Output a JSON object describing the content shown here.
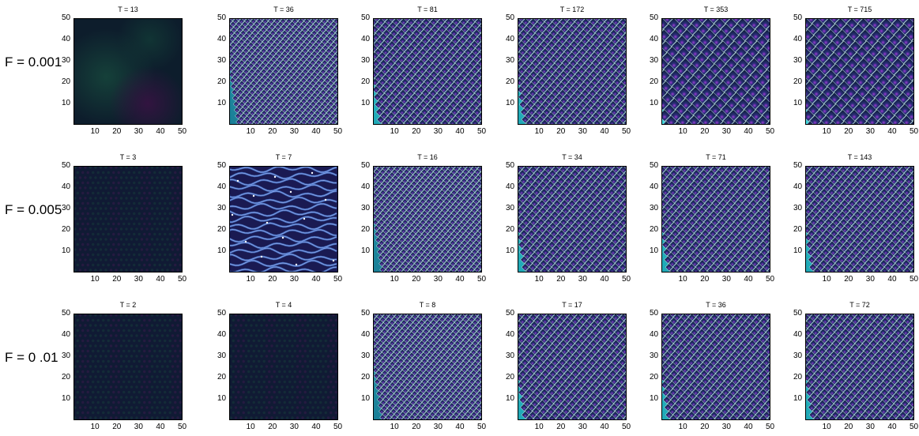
{
  "rows": [
    {
      "label": "F = 0.001"
    },
    {
      "label": "F = 0.005"
    },
    {
      "label": "F = 0 .01"
    }
  ],
  "chart_data": [
    {
      "type": "heatmap",
      "row": 1,
      "col": 1,
      "title": "T = 13",
      "xlim": [
        0,
        50
      ],
      "ylim": [
        0,
        50
      ],
      "xticks": [
        10,
        20,
        30,
        40,
        50
      ],
      "yticks": [
        10,
        20,
        30,
        40,
        50
      ],
      "pattern": "faint-smooth"
    },
    {
      "type": "heatmap",
      "row": 1,
      "col": 2,
      "title": "T = 36",
      "xlim": [
        0,
        50
      ],
      "ylim": [
        0,
        50
      ],
      "xticks": [
        10,
        20,
        30,
        40,
        50
      ],
      "yticks": [
        10,
        20,
        30,
        40,
        50
      ],
      "pattern": "small-pits"
    },
    {
      "type": "heatmap",
      "row": 1,
      "col": 3,
      "title": "T = 81",
      "xlim": [
        0,
        50
      ],
      "ylim": [
        0,
        50
      ],
      "xticks": [
        10,
        20,
        30,
        40,
        50
      ],
      "yticks": [
        10,
        20,
        30,
        40,
        50
      ],
      "pattern": "pits"
    },
    {
      "type": "heatmap",
      "row": 1,
      "col": 4,
      "title": "T = 172",
      "xlim": [
        0,
        50
      ],
      "ylim": [
        0,
        50
      ],
      "xticks": [
        10,
        20,
        30,
        40,
        50
      ],
      "yticks": [
        10,
        20,
        30,
        40,
        50
      ],
      "pattern": "pits"
    },
    {
      "type": "heatmap",
      "row": 1,
      "col": 5,
      "title": "T = 353",
      "xlim": [
        0,
        50
      ],
      "ylim": [
        0,
        50
      ],
      "xticks": [
        10,
        20,
        30,
        40,
        50
      ],
      "yticks": [
        10,
        20,
        30,
        40,
        50
      ],
      "pattern": "large-pits"
    },
    {
      "type": "heatmap",
      "row": 1,
      "col": 6,
      "title": "T = 715",
      "xlim": [
        0,
        50
      ],
      "ylim": [
        0,
        50
      ],
      "xticks": [
        10,
        20,
        30,
        40,
        50
      ],
      "yticks": [
        10,
        20,
        30,
        40,
        50
      ],
      "pattern": "large-pits"
    },
    {
      "type": "heatmap",
      "row": 2,
      "col": 1,
      "title": "T = 3",
      "xlim": [
        0,
        50
      ],
      "ylim": [
        0,
        50
      ],
      "xticks": [
        10,
        20,
        30,
        40,
        50
      ],
      "yticks": [
        10,
        20,
        30,
        40,
        50
      ],
      "pattern": "faint-texture"
    },
    {
      "type": "heatmap",
      "row": 2,
      "col": 2,
      "title": "T = 7",
      "xlim": [
        0,
        50
      ],
      "ylim": [
        0,
        50
      ],
      "xticks": [
        10,
        20,
        30,
        40,
        50
      ],
      "yticks": [
        10,
        20,
        30,
        40,
        50
      ],
      "pattern": "labyrinth"
    },
    {
      "type": "heatmap",
      "row": 2,
      "col": 3,
      "title": "T = 16",
      "xlim": [
        0,
        50
      ],
      "ylim": [
        0,
        50
      ],
      "xticks": [
        10,
        20,
        30,
        40,
        50
      ],
      "yticks": [
        10,
        20,
        30,
        40,
        50
      ],
      "pattern": "small-pits"
    },
    {
      "type": "heatmap",
      "row": 2,
      "col": 4,
      "title": "T = 34",
      "xlim": [
        0,
        50
      ],
      "ylim": [
        0,
        50
      ],
      "xticks": [
        10,
        20,
        30,
        40,
        50
      ],
      "yticks": [
        10,
        20,
        30,
        40,
        50
      ],
      "pattern": "pits"
    },
    {
      "type": "heatmap",
      "row": 2,
      "col": 5,
      "title": "T = 71",
      "xlim": [
        0,
        50
      ],
      "ylim": [
        0,
        50
      ],
      "xticks": [
        10,
        20,
        30,
        40,
        50
      ],
      "yticks": [
        10,
        20,
        30,
        40,
        50
      ],
      "pattern": "pits"
    },
    {
      "type": "heatmap",
      "row": 2,
      "col": 6,
      "title": "T = 143",
      "xlim": [
        0,
        50
      ],
      "ylim": [
        0,
        50
      ],
      "xticks": [
        10,
        20,
        30,
        40,
        50
      ],
      "yticks": [
        10,
        20,
        30,
        40,
        50
      ],
      "pattern": "pits"
    },
    {
      "type": "heatmap",
      "row": 3,
      "col": 1,
      "title": "T = 2",
      "xlim": [
        0,
        50
      ],
      "ylim": [
        0,
        50
      ],
      "xticks": [
        10,
        20,
        30,
        40,
        50
      ],
      "yticks": [
        10,
        20,
        30,
        40,
        50
      ],
      "pattern": "faint-texture"
    },
    {
      "type": "heatmap",
      "row": 3,
      "col": 2,
      "title": "T = 4",
      "xlim": [
        0,
        50
      ],
      "ylim": [
        0,
        50
      ],
      "xticks": [
        10,
        20,
        30,
        40,
        50
      ],
      "yticks": [
        10,
        20,
        30,
        40,
        50
      ],
      "pattern": "faint-texture"
    },
    {
      "type": "heatmap",
      "row": 3,
      "col": 3,
      "title": "T = 8",
      "xlim": [
        0,
        50
      ],
      "ylim": [
        0,
        50
      ],
      "xticks": [
        10,
        20,
        30,
        40,
        50
      ],
      "yticks": [
        10,
        20,
        30,
        40,
        50
      ],
      "pattern": "small-pits"
    },
    {
      "type": "heatmap",
      "row": 3,
      "col": 4,
      "title": "T = 17",
      "xlim": [
        0,
        50
      ],
      "ylim": [
        0,
        50
      ],
      "xticks": [
        10,
        20,
        30,
        40,
        50
      ],
      "yticks": [
        10,
        20,
        30,
        40,
        50
      ],
      "pattern": "pits"
    },
    {
      "type": "heatmap",
      "row": 3,
      "col": 5,
      "title": "T = 36",
      "xlim": [
        0,
        50
      ],
      "ylim": [
        0,
        50
      ],
      "xticks": [
        10,
        20,
        30,
        40,
        50
      ],
      "yticks": [
        10,
        20,
        30,
        40,
        50
      ],
      "pattern": "pits"
    },
    {
      "type": "heatmap",
      "row": 3,
      "col": 6,
      "title": "T = 72",
      "xlim": [
        0,
        50
      ],
      "ylim": [
        0,
        50
      ],
      "xticks": [
        10,
        20,
        30,
        40,
        50
      ],
      "yticks": [
        10,
        20,
        30,
        40,
        50
      ],
      "pattern": "pits"
    }
  ],
  "colors": {
    "background": "#ffffff",
    "dark_navy": "#0c1e38",
    "cyan": "#36e1e4",
    "pale_cyan": "#c8fbfb",
    "magenta": "#a040d0",
    "faint_green": "#16443b",
    "faint_purple": "#321440"
  }
}
